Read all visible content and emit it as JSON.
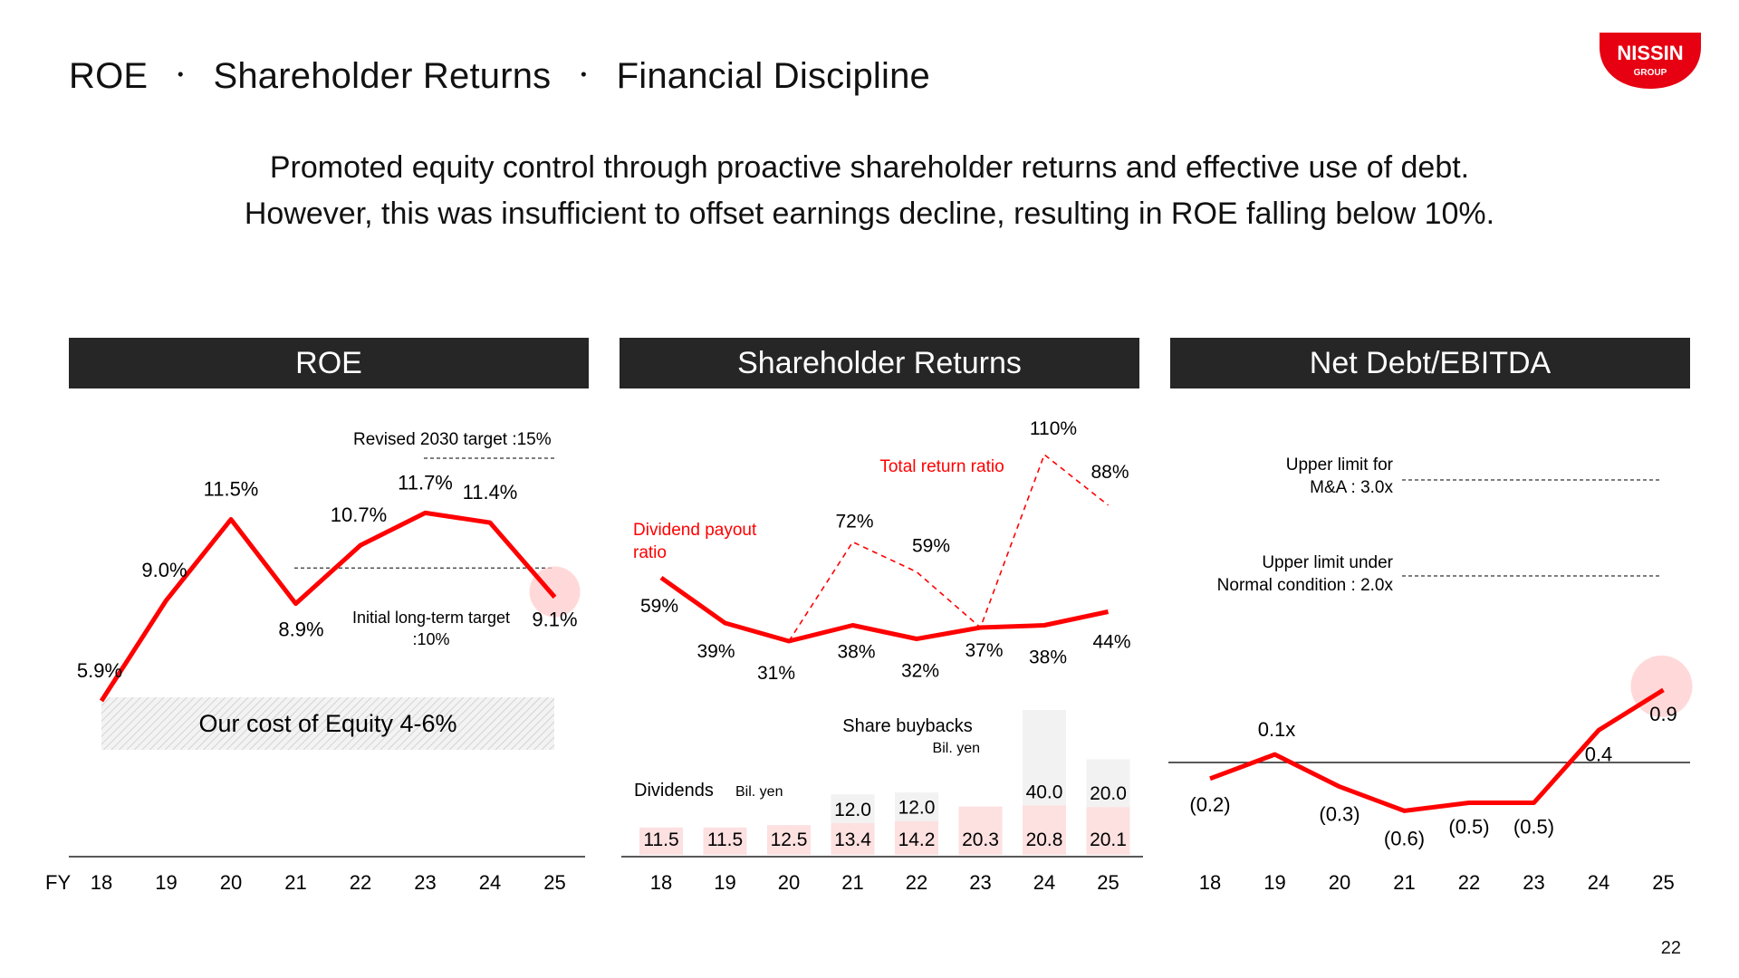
{
  "header": {
    "title_parts": [
      "ROE",
      "Shareholder Returns",
      "Financial Discipline"
    ],
    "separator": "・",
    "logo_text": "NISSIN",
    "logo_subtext": "GROUP"
  },
  "subtitle": {
    "line1": "Promoted equity control through proactive shareholder returns and effective use of debt.",
    "line2": "However, this was insufficient to offset earnings decline, resulting in ROE falling below 10%."
  },
  "panels": {
    "roe": "ROE",
    "returns": "Shareholder Returns",
    "netdebt": "Net Debt/EBITDA"
  },
  "fy_label": "FY",
  "page_number": "22",
  "colors": {
    "accent": "#ff0000",
    "header_bg": "#262626",
    "dividend_bar": "#fde0e0",
    "buyback_bar": "#f2f2f2",
    "hatch": "#d9d9d9"
  },
  "chart_data": [
    {
      "id": "roe",
      "type": "line",
      "categories": [
        "18",
        "19",
        "20",
        "21",
        "22",
        "23",
        "24",
        "25"
      ],
      "values": [
        5.9,
        9.0,
        11.5,
        8.9,
        10.7,
        11.7,
        11.4,
        9.1
      ],
      "value_labels": [
        "5.9%",
        "9.0%",
        "11.5%",
        "8.9%",
        "10.7%",
        "11.7%",
        "11.4%",
        "9.1%"
      ],
      "highlight_index": 7,
      "annotations": {
        "revised_target": "Revised 2030 target :15%",
        "initial_target_line1": "Initial long-term target",
        "initial_target_line2": ":10%",
        "cost_of_equity": "Our cost of Equity 4-6%"
      },
      "initial_target": 10,
      "cost_of_equity_range": [
        4,
        6
      ]
    },
    {
      "id": "shareholder_returns",
      "type": "bar",
      "categories": [
        "18",
        "19",
        "20",
        "21",
        "22",
        "23",
        "24",
        "25"
      ],
      "series": [
        {
          "name": "Dividends",
          "values": [
            11.5,
            11.5,
            12.5,
            13.4,
            14.2,
            20.3,
            20.8,
            20.1
          ]
        },
        {
          "name": "Share buybacks",
          "values": [
            0,
            0,
            0,
            12.0,
            12.0,
            0,
            40.0,
            20.0
          ]
        }
      ],
      "dividend_labels": [
        "11.5",
        "11.5",
        "12.5",
        "13.4",
        "14.2",
        "20.3",
        "20.8",
        "20.1"
      ],
      "buyback_labels": [
        "",
        "",
        "",
        "12.0",
        "12.0",
        "",
        "40.0",
        "20.0"
      ],
      "unit": "Bil. yen",
      "lines": [
        {
          "name": "Dividend payout ratio",
          "name_line1": "Dividend payout",
          "name_line2": "ratio",
          "values": [
            59,
            39,
            31,
            38,
            32,
            37,
            38,
            44
          ],
          "labels": [
            "59%",
            "39%",
            "31%",
            "38%",
            "32%",
            "37%",
            "38%",
            "44%"
          ]
        },
        {
          "name": "Total return ratio",
          "values": [
            null,
            null,
            31,
            72,
            59,
            37,
            110,
            88
          ],
          "labels": [
            "",
            "",
            "",
            "72%",
            "59%",
            "",
            "110%",
            "88%"
          ]
        }
      ]
    },
    {
      "id": "net_debt_ebitda",
      "type": "line",
      "categories": [
        "18",
        "19",
        "20",
        "21",
        "22",
        "23",
        "24",
        "25"
      ],
      "values": [
        -0.2,
        0.1,
        -0.3,
        -0.6,
        -0.5,
        -0.5,
        0.4,
        0.9
      ],
      "value_labels": [
        "(0.2)",
        "0.1x",
        "(0.3)",
        "(0.6)",
        "(0.5)",
        "(0.5)",
        "0.4",
        "0.9"
      ],
      "highlight_index": 7,
      "limits": [
        {
          "line1": "Upper limit for",
          "line2": "M&A : 3.0x",
          "value": 3.0
        },
        {
          "line1": "Upper limit under",
          "line2": "Normal condition : 2.0x",
          "value": 2.0
        }
      ]
    }
  ]
}
